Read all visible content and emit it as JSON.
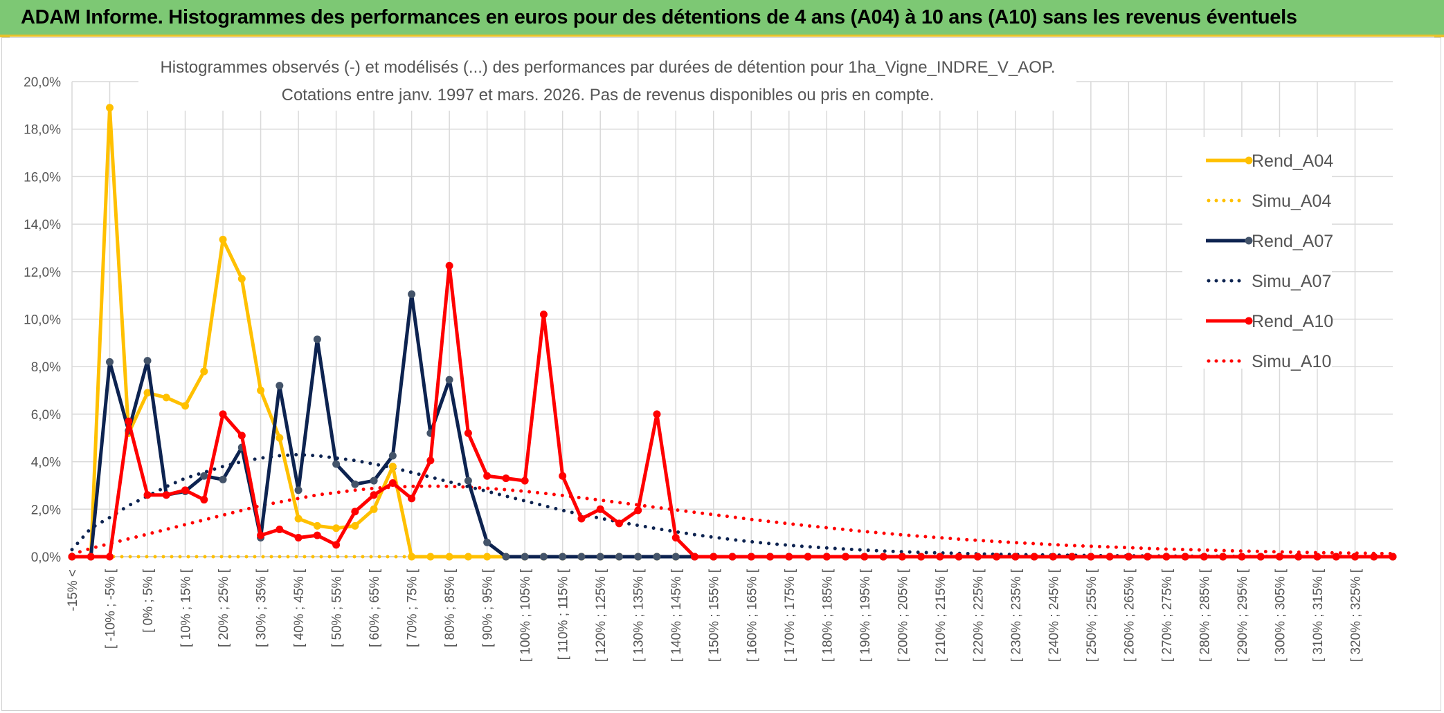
{
  "header": {
    "title": "ADAM Informe. Histogrammes des performances en euros pour des détentions de 4 ans (A04) à 10 ans (A10) sans les revenus éventuels"
  },
  "chart_data": {
    "type": "line",
    "title": "Histogrammes observés (-) et modélisés (...) des performances par durées de détention pour 1ha_Vigne_INDRE_V_AOP.",
    "subtitle": "Cotations entre janv. 1997 et mars. 2026. Pas de revenus disponibles ou pris en compte.",
    "xlabel": "",
    "ylabel": "",
    "ylim": [
      0,
      20
    ],
    "yticks": [
      "0,0%",
      "2,0%",
      "4,0%",
      "6,0%",
      "8,0%",
      "10,0%",
      "12,0%",
      "14,0%",
      "16,0%",
      "18,0%",
      "20,0%"
    ],
    "grid": true,
    "legend_position": "right",
    "categories": [
      "-15% <",
      "[ -15% ; -10% [",
      "[ -10% ; -5% [",
      "[ -5% ; 0% [",
      "[ 0% ; 5% [",
      "[ 5% ; 10% [",
      "[ 10% ; 15% [",
      "[ 15% ; 20% [",
      "[ 20% ; 25% [",
      "[ 25% ; 30% [",
      "[ 30% ; 35% [",
      "[ 35% ; 40% [",
      "[ 40% ; 45% [",
      "[ 45% ; 50% [",
      "[ 50% ; 55% [",
      "[ 55% ; 60% [",
      "[ 60% ; 65% [",
      "[ 65% ; 70% [",
      "[ 70% ; 75% [",
      "[ 75% ; 80% [",
      "[ 80% ; 85% [",
      "[ 85% ; 90% [",
      "[ 90% ; 95% [",
      "[ 95% ; 100% [",
      "[ 100% ; 105% [",
      "[ 105% ; 110% [",
      "[ 110% ; 115% [",
      "[ 115% ; 120% [",
      "[ 120% ; 125% [",
      "[ 125% ; 130% [",
      "[ 130% ; 135% [",
      "[ 135% ; 140% [",
      "[ 140% ; 145% [",
      "[ 145% ; 150% [",
      "[ 150% ; 155% [",
      "[ 155% ; 160% [",
      "[ 160% ; 165% [",
      "[ 165% ; 170% [",
      "[ 170% ; 175% [",
      "[ 175% ; 180% [",
      "[ 180% ; 185% [",
      "[ 185% ; 190% [",
      "[ 190% ; 195% [",
      "[ 195% ; 200% [",
      "[ 200% ; 205% [",
      "[ 205% ; 210% [",
      "[ 210% ; 215% [",
      "[ 215% ; 220% [",
      "[ 220% ; 225% [",
      "[ 225% ; 230% [",
      "[ 230% ; 235% [",
      "[ 235% ; 240% [",
      "[ 240% ; 245% [",
      "[ 245% ; 250% [",
      "[ 250% ; 255% [",
      "[ 255% ; 260% [",
      "[ 260% ; 265% [",
      "[ 265% ; 270% [",
      "[ 270% ; 275% [",
      "[ 275% ; 280% [",
      "[ 280% ; 285% [",
      "[ 285% ; 290% [",
      "[ 290% ; 295% [",
      "[ 295% ; 300% [",
      "[ 300% ; 305% [",
      "[ 305% ; 310% [",
      "[ 310% ; 315% [",
      "[ 315% ; 320% [",
      "[ 320% ; 325% [",
      "[ 325% ; 330% [",
      "330% >"
    ],
    "x_labels_shown": [
      "-15% <",
      "[ -10% ; -5% [",
      "[ 0% ; 5% [",
      "[ 10% ; 15% [",
      "[ 20% ; 25% [",
      "[ 30% ; 35% [",
      "[ 40% ; 45% [",
      "[ 50% ; 55% [",
      "[ 60% ; 65% [",
      "[ 70% ; 75% [",
      "[ 80% ; 85% [",
      "[ 90% ; 95% [",
      "[ 100% ; 105% [",
      "[ 110% ; 115% [",
      "[ 120% ; 125% [",
      "[ 130% ; 135% [",
      "[ 140% ; 145% [",
      "[ 150% ; 155% [",
      "[ 160% ; 165% [",
      "[ 170% ; 175% [",
      "[ 180% ; 185% [",
      "[ 190% ; 195% [",
      "[ 200% ; 205% [",
      "[ 210% ; 215% [",
      "[ 220% ; 225% [",
      "[ 230% ; 235% [",
      "[ 240% ; 245% [",
      "[ 250% ; 255% [",
      "[ 260% ; 265% [",
      "[ 270% ; 275% [",
      "[ 280% ; 285% [",
      "[ 290% ; 295% [",
      "[ 300% ; 305% [",
      "[ 310% ; 315% [",
      "[ 320% ; 325% ["
    ],
    "series": [
      {
        "name": "Rend_A04",
        "style": "solid",
        "color": "#ffc000",
        "values": [
          0,
          0,
          18.9,
          5.2,
          6.9,
          6.7,
          6.35,
          7.8,
          13.35,
          11.7,
          7.0,
          5.0,
          1.6,
          1.3,
          1.2,
          1.3,
          2.0,
          3.8,
          0,
          0,
          0,
          0,
          0,
          0,
          0,
          0,
          0,
          0,
          0,
          0,
          0,
          0,
          0,
          0,
          0,
          0,
          0,
          0,
          0,
          0,
          0,
          0,
          0,
          0,
          0,
          0,
          0,
          0,
          0,
          0,
          0,
          0,
          0,
          0,
          0,
          0,
          0,
          0,
          0,
          0,
          0,
          0,
          0,
          0,
          0,
          0,
          0,
          0,
          0,
          0,
          0
        ]
      },
      {
        "name": "Simu_A04",
        "style": "dotted",
        "color": "#ffc000",
        "values": [
          0,
          0,
          0,
          0,
          0,
          0,
          0,
          0,
          0,
          0,
          0,
          0,
          0,
          0,
          0,
          0,
          0,
          0,
          0,
          0,
          0,
          0,
          0,
          0,
          0,
          0,
          0,
          0,
          0,
          0,
          0,
          0,
          0,
          0,
          0,
          0,
          0,
          0,
          0,
          0,
          0,
          0,
          0,
          0,
          0,
          0,
          0,
          0,
          0,
          0,
          0,
          0,
          0,
          0,
          0,
          0,
          0,
          0,
          0,
          0,
          0,
          0,
          0,
          0,
          0,
          0,
          0,
          0,
          0,
          0,
          0
        ]
      },
      {
        "name": "Rend_A07",
        "style": "solid",
        "color": "#0d2350",
        "values": [
          0,
          0,
          8.2,
          5.3,
          8.25,
          2.6,
          2.75,
          3.4,
          3.25,
          4.6,
          0.8,
          7.2,
          2.8,
          9.15,
          3.9,
          3.05,
          3.2,
          4.25,
          11.05,
          5.2,
          7.45,
          3.2,
          0.6,
          0,
          0,
          0,
          0,
          0,
          0,
          0,
          0,
          0,
          0,
          0,
          0,
          0,
          0,
          0,
          0,
          0,
          0,
          0,
          0,
          0,
          0,
          0,
          0,
          0,
          0,
          0,
          0,
          0,
          0,
          0,
          0,
          0,
          0,
          0,
          0,
          0,
          0,
          0,
          0,
          0,
          0,
          0,
          0,
          0,
          0,
          0,
          0
        ]
      },
      {
        "name": "Simu_A07",
        "style": "dotted",
        "color": "#0d2350",
        "values": [
          0.3,
          1.2,
          1.65,
          2.15,
          2.55,
          2.95,
          3.3,
          3.55,
          3.8,
          4.0,
          4.15,
          4.25,
          4.3,
          4.25,
          4.15,
          4.05,
          3.9,
          3.75,
          3.55,
          3.35,
          3.15,
          2.95,
          2.75,
          2.55,
          2.35,
          2.15,
          1.95,
          1.78,
          1.62,
          1.46,
          1.32,
          1.18,
          1.05,
          0.93,
          0.82,
          0.72,
          0.63,
          0.55,
          0.48,
          0.42,
          0.37,
          0.32,
          0.28,
          0.24,
          0.21,
          0.18,
          0.16,
          0.14,
          0.12,
          0.1,
          0.09,
          0.08,
          0.07,
          0.06,
          0.05,
          0.04,
          0.04,
          0.03,
          0.03,
          0.02,
          0.02,
          0.02,
          0.01,
          0.01,
          0.01,
          0.01,
          0.01,
          0.01,
          0,
          0,
          0
        ]
      },
      {
        "name": "Rend_A10",
        "style": "solid",
        "color": "#ff0000",
        "values": [
          0,
          0,
          0,
          5.7,
          2.6,
          2.6,
          2.8,
          2.4,
          6.0,
          5.1,
          0.9,
          1.15,
          0.8,
          0.9,
          0.5,
          1.9,
          2.6,
          3.1,
          2.45,
          4.05,
          12.25,
          5.2,
          3.4,
          3.3,
          3.2,
          10.2,
          3.4,
          1.6,
          2.0,
          1.4,
          1.95,
          6.0,
          0.8,
          0,
          0,
          0,
          0,
          0,
          0,
          0,
          0,
          0,
          0,
          0,
          0,
          0,
          0,
          0,
          0,
          0,
          0,
          0,
          0,
          0,
          0,
          0,
          0,
          0,
          0,
          0,
          0,
          0,
          0,
          0,
          0,
          0,
          0,
          0,
          0,
          0,
          0
        ]
      },
      {
        "name": "Simu_A10",
        "style": "dotted",
        "color": "#ff0000",
        "values": [
          0.1,
          0.35,
          0.55,
          0.75,
          0.95,
          1.15,
          1.35,
          1.55,
          1.75,
          1.95,
          2.15,
          2.3,
          2.45,
          2.6,
          2.7,
          2.8,
          2.88,
          2.93,
          2.96,
          2.97,
          2.96,
          2.93,
          2.88,
          2.82,
          2.75,
          2.67,
          2.58,
          2.48,
          2.38,
          2.28,
          2.18,
          2.07,
          1.97,
          1.87,
          1.77,
          1.67,
          1.57,
          1.48,
          1.39,
          1.3,
          1.22,
          1.14,
          1.06,
          0.99,
          0.92,
          0.86,
          0.8,
          0.74,
          0.69,
          0.64,
          0.59,
          0.55,
          0.51,
          0.47,
          0.44,
          0.41,
          0.38,
          0.35,
          0.32,
          0.3,
          0.28,
          0.26,
          0.24,
          0.22,
          0.2,
          0.19,
          0.17,
          0.16,
          0.15,
          0.14,
          0.13
        ]
      }
    ]
  }
}
